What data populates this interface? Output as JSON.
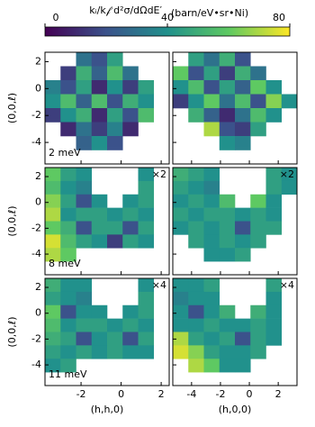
{
  "chart_data": {
    "type": "heatmap",
    "colorbar": {
      "label": "kᵢ/k𝒻 d²σ/dΩdE′",
      "units": "(barn/eV•sr•Ni)",
      "lim": [
        0,
        80
      ],
      "ticks": [
        0,
        40,
        80
      ],
      "colormap": [
        "#440154",
        "#3b528b",
        "#21918c",
        "#5ec962",
        "#fde725"
      ]
    },
    "xaxes": [
      {
        "label": "(h,h,0)",
        "xlim": [
          -3.8,
          2.4
        ],
        "xticks": [
          -2,
          0,
          2
        ]
      },
      {
        "label": "(h,0,0)",
        "xlim": [
          -5.3,
          3.3
        ],
        "xticks": [
          -4,
          -2,
          0,
          2
        ]
      }
    ],
    "yaxes": [
      {
        "label": "(0,0,ℓ)",
        "ylim": [
          -5.6,
          2.7
        ],
        "yticks": [
          2,
          0,
          -2,
          -4
        ]
      },
      {
        "label": "(0,0,ℓ)",
        "ylim": [
          -5.6,
          2.7
        ],
        "yticks": [
          2,
          0,
          -2,
          -4
        ]
      },
      {
        "label": "(0,0,ℓ)",
        "ylim": [
          -5.6,
          2.7
        ],
        "yticks": [
          2,
          0,
          -2,
          -4
        ]
      }
    ],
    "panels": [
      {
        "energy": "2 meV",
        "values": [
          [
            null,
            null,
            30,
            20,
            45,
            null,
            null,
            null
          ],
          [
            null,
            15,
            50,
            25,
            55,
            30,
            null,
            null
          ],
          [
            35,
            20,
            45,
            10,
            40,
            15,
            45,
            null
          ],
          [
            40,
            55,
            25,
            55,
            20,
            50,
            40,
            null
          ],
          [
            15,
            40,
            50,
            10,
            45,
            20,
            55,
            null
          ],
          [
            null,
            10,
            30,
            15,
            35,
            10,
            null,
            null
          ],
          [
            null,
            null,
            25,
            40,
            20,
            null,
            null,
            null
          ],
          [
            null,
            null,
            null,
            null,
            null,
            null,
            null,
            null
          ]
        ]
      },
      {
        "values": [
          [
            null,
            45,
            30,
            50,
            20,
            null,
            null,
            null
          ],
          [
            60,
            20,
            45,
            15,
            50,
            30,
            null,
            null
          ],
          [
            40,
            55,
            20,
            45,
            25,
            60,
            40,
            null
          ],
          [
            15,
            40,
            60,
            30,
            55,
            20,
            65,
            40
          ],
          [
            null,
            50,
            25,
            10,
            30,
            55,
            40,
            null
          ],
          [
            null,
            null,
            70,
            20,
            15,
            45,
            null,
            null
          ],
          [
            null,
            null,
            null,
            40,
            35,
            null,
            null,
            null
          ],
          [
            null,
            null,
            null,
            null,
            null,
            null,
            null,
            null
          ]
        ]
      },
      {
        "energy": "8 meV",
        "scale": "×2",
        "values": [
          [
            60,
            45,
            40,
            null,
            null,
            null,
            40,
            null
          ],
          [
            55,
            40,
            35,
            null,
            null,
            null,
            45,
            null
          ],
          [
            65,
            45,
            20,
            40,
            null,
            40,
            45,
            null
          ],
          [
            70,
            40,
            45,
            45,
            40,
            45,
            40,
            null
          ],
          [
            60,
            50,
            20,
            45,
            45,
            20,
            45,
            null
          ],
          [
            75,
            55,
            45,
            40,
            15,
            45,
            40,
            null
          ],
          [
            70,
            60,
            null,
            null,
            null,
            null,
            null,
            null
          ],
          [
            null,
            null,
            null,
            null,
            null,
            null,
            null,
            null
          ]
        ]
      },
      {
        "scale": "×2",
        "values": [
          [
            50,
            45,
            40,
            null,
            null,
            null,
            45,
            40
          ],
          [
            45,
            40,
            35,
            null,
            null,
            null,
            45,
            40
          ],
          [
            40,
            45,
            40,
            55,
            null,
            60,
            40,
            null
          ],
          [
            45,
            40,
            45,
            45,
            40,
            45,
            40,
            null
          ],
          [
            40,
            45,
            40,
            45,
            20,
            45,
            45,
            null
          ],
          [
            null,
            45,
            40,
            45,
            40,
            45,
            null,
            null
          ],
          [
            null,
            null,
            40,
            40,
            45,
            null,
            null,
            null
          ],
          [
            null,
            null,
            null,
            null,
            null,
            null,
            null,
            null
          ]
        ]
      },
      {
        "energy": "11 meV",
        "scale": "×4",
        "values": [
          [
            50,
            40,
            40,
            null,
            null,
            null,
            40,
            null
          ],
          [
            45,
            40,
            35,
            null,
            null,
            null,
            45,
            null
          ],
          [
            60,
            20,
            40,
            40,
            null,
            40,
            45,
            null
          ],
          [
            55,
            40,
            45,
            45,
            40,
            45,
            40,
            null
          ],
          [
            50,
            45,
            20,
            40,
            45,
            20,
            45,
            null
          ],
          [
            45,
            40,
            45,
            40,
            45,
            40,
            40,
            null
          ],
          [
            40,
            45,
            null,
            null,
            null,
            null,
            null,
            null
          ],
          [
            null,
            null,
            null,
            null,
            null,
            null,
            null,
            null
          ]
        ]
      },
      {
        "scale": "×4",
        "values": [
          [
            40,
            40,
            45,
            null,
            null,
            null,
            45,
            null
          ],
          [
            35,
            40,
            40,
            null,
            null,
            null,
            40,
            null
          ],
          [
            40,
            20,
            40,
            50,
            null,
            50,
            40,
            null
          ],
          [
            40,
            40,
            45,
            40,
            40,
            45,
            40,
            null
          ],
          [
            70,
            45,
            40,
            45,
            20,
            45,
            40,
            null
          ],
          [
            75,
            65,
            45,
            40,
            40,
            45,
            null,
            null
          ],
          [
            null,
            70,
            60,
            40,
            40,
            null,
            null,
            null
          ],
          [
            null,
            null,
            null,
            null,
            null,
            null,
            null,
            null
          ]
        ]
      }
    ]
  }
}
